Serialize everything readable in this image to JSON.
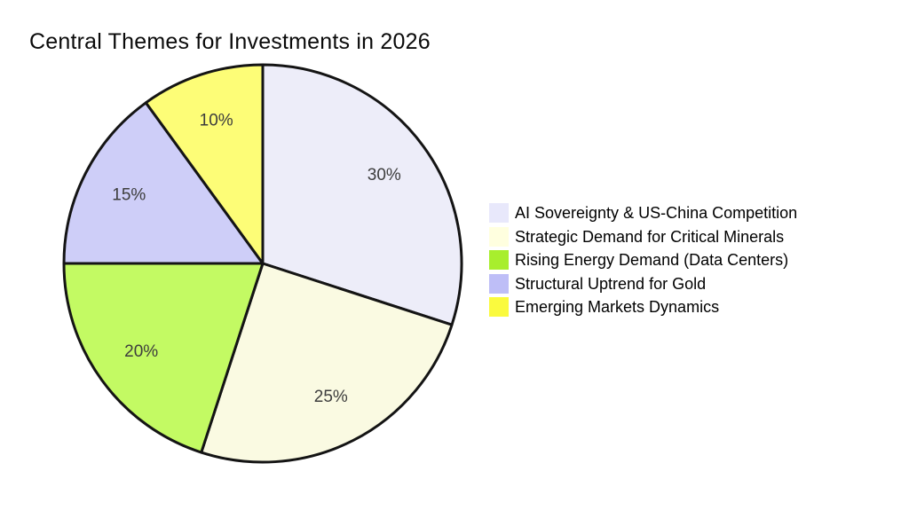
{
  "page": {
    "background_color": "#FFFFFF"
  },
  "chart_data": {
    "type": "pie",
    "title": "Central Themes for Investments in 2026",
    "start_angle": "12-o-clock",
    "direction": "clockwise",
    "legend_position": "right-middle",
    "grid": false,
    "outline_color": "#141414",
    "pct_label_color": "#3D3D3D",
    "segments": [
      {
        "label": "AI Sovereignty & US-China Competition",
        "value": 30,
        "pct_label": "30%",
        "wedge_color": "#EDEDF9",
        "legend_color": "#E8E8FB"
      },
      {
        "label": "Strategic Demand for Critical Minerals",
        "value": 25,
        "pct_label": "25%",
        "wedge_color": "#FAFAE2",
        "legend_color": "#FFFFDF"
      },
      {
        "label": "Rising Energy Demand (Data Centers)",
        "value": 20,
        "pct_label": "20%",
        "wedge_color": "#C3FA63",
        "legend_color": "#A8EE2D"
      },
      {
        "label": "Structural Uptrend for Gold",
        "value": 15,
        "pct_label": "15%",
        "wedge_color": "#CECEF8",
        "legend_color": "#BEBEF7"
      },
      {
        "label": "Emerging Markets Dynamics",
        "value": 10,
        "pct_label": "10%",
        "wedge_color": "#FDFD77",
        "legend_color": "#FAFA3E"
      }
    ]
  }
}
